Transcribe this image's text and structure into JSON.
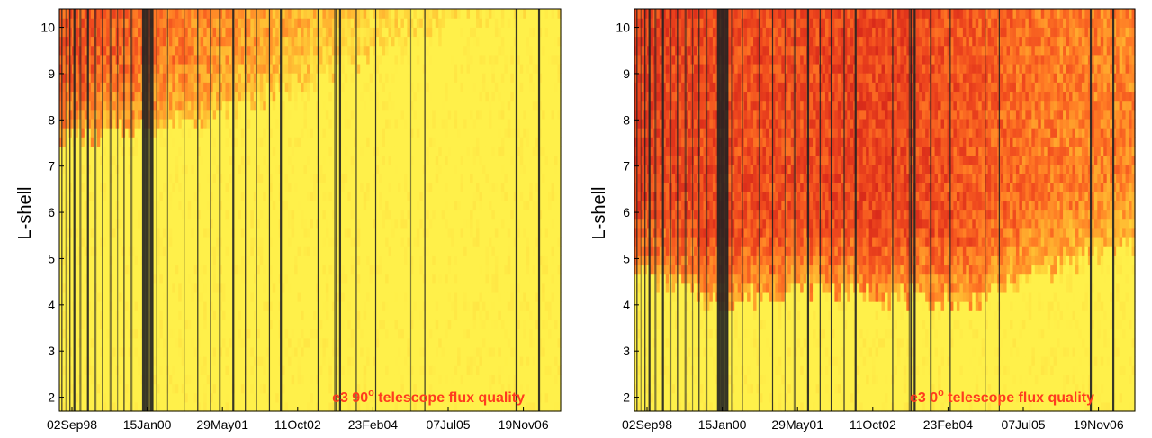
{
  "chart_data": [
    {
      "type": "heatmap",
      "title": "",
      "xlabel": "",
      "ylabel": "L-shell",
      "annotation": {
        "prefix": "e3 90",
        "sup": "o",
        "suffix": " telescope flux quality"
      },
      "x_tick_labels": [
        "02Sep98",
        "15Jan00",
        "29May01",
        "11Oct02",
        "23Feb04",
        "07Jul05",
        "19Nov06"
      ],
      "y_ticks": [
        2,
        3,
        4,
        5,
        6,
        7,
        8,
        9,
        10
      ],
      "ylim": [
        1.7,
        10.4
      ],
      "color_scale": [
        "#fff04a",
        "#ffd53a",
        "#ffad2e",
        "#ff7a24",
        "#f04a1e",
        "#d92b1a"
      ],
      "data_gap_color": "#222222",
      "grid": false,
      "quality_profile": {
        "description": "degraded (red) at high L early in mission, mostly good (yellow) afterwards",
        "boundary_L_by_period": [
          7.6,
          7.8,
          8.2,
          8.8,
          9.6,
          10.2,
          10.4
        ],
        "intensity_by_period": [
          0.75,
          0.65,
          0.5,
          0.35,
          0.2,
          0.1,
          0.05
        ]
      }
    },
    {
      "type": "heatmap",
      "title": "",
      "xlabel": "",
      "ylabel": "L-shell",
      "annotation": {
        "prefix": "e3 0",
        "sup": "o",
        "suffix": " telescope flux quality"
      },
      "x_tick_labels": [
        "02Sep98",
        "15Jan00",
        "29May01",
        "11Oct02",
        "23Feb04",
        "07Jul05",
        "19Nov06"
      ],
      "y_ticks": [
        2,
        3,
        4,
        5,
        6,
        7,
        8,
        9,
        10
      ],
      "ylim": [
        1.7,
        10.4
      ],
      "color_scale": [
        "#fff04a",
        "#ffd53a",
        "#ffad2e",
        "#ff7a24",
        "#f04a1e",
        "#d92b1a"
      ],
      "data_gap_color": "#222222",
      "grid": false,
      "quality_profile": {
        "description": "degraded (red) down to L~4-5 throughout mission, boundary lowest around 2002-2004",
        "boundary_L_by_period": [
          4.8,
          4.0,
          4.4,
          4.2,
          4.0,
          4.8,
          5.3
        ],
        "intensity_by_period": [
          0.85,
          0.8,
          0.8,
          0.85,
          0.75,
          0.6,
          0.55
        ]
      }
    }
  ]
}
